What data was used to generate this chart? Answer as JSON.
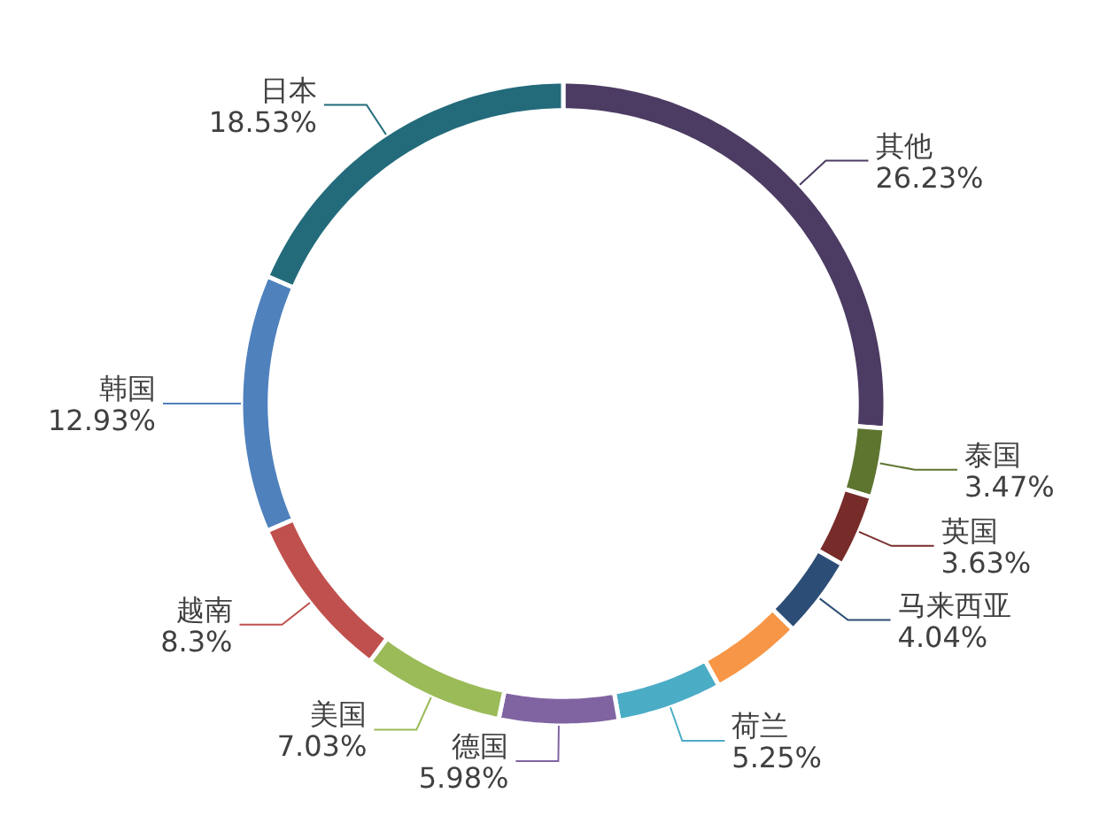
{
  "chart_data": {
    "type": "donut",
    "categories": [
      "其他",
      "泰国",
      "英国",
      "马来西亚",
      null,
      "荷兰",
      "德国",
      "美国",
      "越南",
      "韩国",
      "日本"
    ],
    "values": [
      26.23,
      3.47,
      3.63,
      4.04,
      4.61,
      5.25,
      5.98,
      7.03,
      8.3,
      12.93,
      18.53
    ],
    "value_labels": [
      "26.23%",
      "3.47%",
      "3.63%",
      "4.04%",
      null,
      "5.25%",
      "5.98%",
      "7.03%",
      "8.3%",
      "12.93%",
      "18.53%"
    ],
    "colors": [
      "#4c3b62",
      "#5e7530",
      "#772c2a",
      "#2c4d75",
      "#f79646",
      "#4bacc6",
      "#8064a2",
      "#9bbb59",
      "#c0504d",
      "#4f81bd",
      "#236b7b"
    ],
    "legend": false
  }
}
